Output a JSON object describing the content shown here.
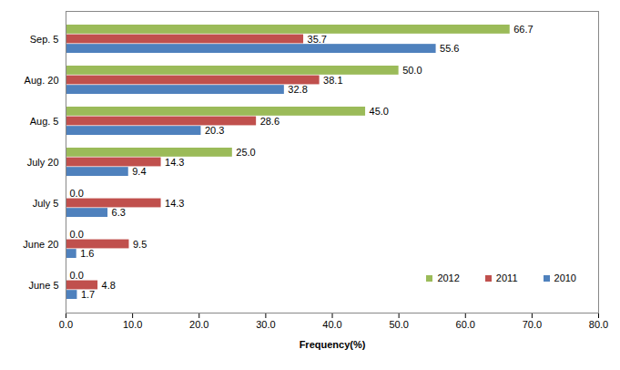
{
  "chart_data": {
    "type": "bar",
    "orientation": "horizontal",
    "categories": [
      "Sep. 5",
      "Aug. 20",
      "Aug. 5",
      "July 20",
      "July 5",
      "June 20",
      "June 5"
    ],
    "series": [
      {
        "name": "2012",
        "color": "#9bbb59",
        "values": [
          66.7,
          50.0,
          45.0,
          25.0,
          0.0,
          0.0,
          0.0
        ],
        "value_labels": [
          "66.7",
          "50.0",
          "45.0",
          "25.0",
          "0.0",
          "0.0",
          "0.0"
        ]
      },
      {
        "name": "2011",
        "color": "#c0504d",
        "values": [
          35.7,
          38.1,
          28.6,
          14.3,
          14.3,
          9.5,
          4.8
        ],
        "value_labels": [
          "35.7",
          "38.1",
          "28.6",
          "14.3",
          "14.3",
          "9.5",
          "4.8"
        ]
      },
      {
        "name": "2010",
        "color": "#4f81bd",
        "values": [
          55.6,
          32.8,
          20.3,
          9.4,
          6.3,
          1.6,
          1.7
        ],
        "value_labels": [
          "55.6",
          "32.8",
          "20.3",
          "9.4",
          "6.3",
          "1.6",
          "1.7"
        ]
      }
    ],
    "x_label": "Frequency(%)",
    "xlim": [
      0,
      80
    ],
    "xticks": [
      {
        "value": 0,
        "label": "0.0"
      },
      {
        "value": 10,
        "label": "10.0"
      },
      {
        "value": 20,
        "label": "20.0"
      },
      {
        "value": 30,
        "label": "30.0"
      },
      {
        "value": 40,
        "label": "40.0"
      },
      {
        "value": 50,
        "label": "50.0"
      },
      {
        "value": 60,
        "label": "60.0"
      },
      {
        "value": 70,
        "label": "70.0"
      },
      {
        "value": 80,
        "label": "80.0"
      }
    ],
    "grid": false,
    "data_labels": true,
    "legend": "lower right"
  }
}
